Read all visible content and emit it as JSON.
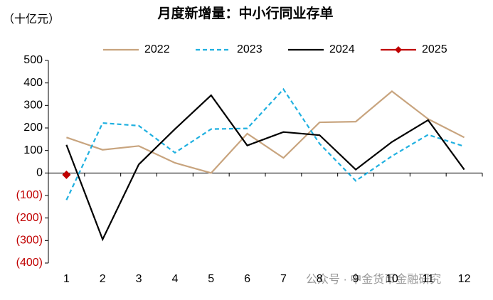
{
  "chart_data": {
    "type": "line",
    "title": "月度新增量：中小行同业存单",
    "unit_label": "（十亿元）",
    "watermark": "公众号 · 中金货币金融研究",
    "categories": [
      "1",
      "2",
      "3",
      "4",
      "5",
      "6",
      "7",
      "8",
      "9",
      "10",
      "11",
      "12"
    ],
    "series": [
      {
        "name": "2022",
        "color": "#c8a47e",
        "dash": false,
        "marker": false,
        "values": [
          158,
          103,
          120,
          45,
          0,
          175,
          67,
          225,
          228,
          363,
          240,
          158
        ]
      },
      {
        "name": "2023",
        "color": "#1fb0e0",
        "dash": true,
        "marker": false,
        "values": [
          -120,
          222,
          210,
          90,
          195,
          198,
          372,
          130,
          -35,
          75,
          170,
          118
        ]
      },
      {
        "name": "2024",
        "color": "#000000",
        "dash": false,
        "marker": false,
        "values": [
          125,
          -295,
          38,
          195,
          345,
          122,
          182,
          168,
          15,
          138,
          235,
          15
        ]
      },
      {
        "name": "2025",
        "color": "#c00000",
        "dash": false,
        "marker": true,
        "values": [
          -8,
          null,
          null,
          null,
          null,
          null,
          null,
          null,
          null,
          null,
          null,
          null
        ]
      }
    ],
    "ylim": [
      -400,
      500
    ],
    "yticks": [
      {
        "value": -400,
        "label": "(400)"
      },
      {
        "value": -300,
        "label": "(300)"
      },
      {
        "value": -200,
        "label": "(200)"
      },
      {
        "value": -100,
        "label": "(100)"
      },
      0,
      100,
      200,
      300,
      400,
      500
    ],
    "negative_label_color": "#c00000",
    "legend": "top"
  }
}
